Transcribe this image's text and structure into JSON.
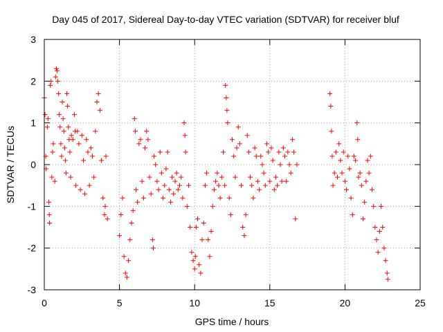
{
  "chart_data": {
    "type": "scatter",
    "title": "Day 045 of 2017, Sidereal Day-to-day VTEC variation (SDTVAR) for receiver bluf",
    "xlabel": "GPS time / hours",
    "ylabel": "SDTVAR / TECUs",
    "xlim": [
      0,
      25
    ],
    "ylim": [
      -3,
      3
    ],
    "xticks": [
      0,
      5,
      10,
      15,
      20,
      25
    ],
    "yticks": [
      -3,
      -2,
      -1,
      0,
      1,
      2,
      3
    ],
    "grid": true,
    "marker": "+",
    "marker_color": "#ff0000",
    "series": [
      {
        "name": "SDTVAR",
        "points": [
          [
            0.0,
            1.6
          ],
          [
            0.05,
            1.2
          ],
          [
            0.1,
            0.2
          ],
          [
            0.12,
            -0.1
          ],
          [
            0.2,
            0.9
          ],
          [
            0.25,
            1.1
          ],
          [
            0.3,
            -0.9
          ],
          [
            0.33,
            -1.2
          ],
          [
            0.35,
            -1.4
          ],
          [
            0.4,
            1.9
          ],
          [
            0.45,
            2.0
          ],
          [
            0.5,
            -0.3
          ],
          [
            0.55,
            0.3
          ],
          [
            0.6,
            0.5
          ],
          [
            0.7,
            -0.4
          ],
          [
            0.75,
            2.1
          ],
          [
            0.8,
            2.3
          ],
          [
            0.85,
            2.25
          ],
          [
            0.9,
            2.0
          ],
          [
            0.95,
            1.7
          ],
          [
            1.0,
            1.2
          ],
          [
            1.05,
            0.9
          ],
          [
            1.1,
            0.5
          ],
          [
            1.15,
            0.2
          ],
          [
            1.2,
            1.5
          ],
          [
            1.25,
            1.1
          ],
          [
            1.3,
            0.8
          ],
          [
            1.35,
            0.4
          ],
          [
            1.4,
            0.1
          ],
          [
            1.45,
            -0.2
          ],
          [
            1.5,
            1.7
          ],
          [
            1.55,
            1.4
          ],
          [
            1.6,
            0.9
          ],
          [
            1.65,
            0.6
          ],
          [
            1.7,
            0.3
          ],
          [
            1.75,
            -0.3
          ],
          [
            1.8,
            0.7
          ],
          [
            1.9,
            0.6
          ],
          [
            2.0,
            1.2
          ],
          [
            2.05,
            0.8
          ],
          [
            2.1,
            -0.5
          ],
          [
            2.2,
            0.8
          ],
          [
            2.3,
            0.5
          ],
          [
            2.4,
            -0.6
          ],
          [
            2.5,
            0.7
          ],
          [
            2.6,
            0.1
          ],
          [
            2.7,
            -0.7
          ],
          [
            2.8,
            0.6
          ],
          [
            2.9,
            0.3
          ],
          [
            3.0,
            -0.5
          ],
          [
            3.1,
            0.4
          ],
          [
            3.2,
            0.2
          ],
          [
            3.3,
            -0.3
          ],
          [
            3.4,
            0.8
          ],
          [
            3.5,
            1.5
          ],
          [
            3.6,
            1.7
          ],
          [
            3.7,
            1.3
          ],
          [
            3.8,
            0.1
          ],
          [
            3.9,
            -0.8
          ],
          [
            4.0,
            -1.2
          ],
          [
            4.05,
            -1.0
          ],
          [
            4.1,
            0.2
          ],
          [
            4.2,
            -1.3
          ],
          [
            5.0,
            -1.7
          ],
          [
            5.1,
            -1.2
          ],
          [
            5.2,
            -0.8
          ],
          [
            5.3,
            -2.2
          ],
          [
            5.4,
            -2.6
          ],
          [
            5.5,
            -2.7
          ],
          [
            5.6,
            -2.3
          ],
          [
            5.7,
            -1.8
          ],
          [
            5.8,
            -1.4
          ],
          [
            5.9,
            -1.1
          ],
          [
            6.0,
            1.1
          ],
          [
            6.05,
            0.8
          ],
          [
            6.1,
            -0.6
          ],
          [
            6.2,
            -0.9
          ],
          [
            6.3,
            0.5
          ],
          [
            6.4,
            0.6
          ],
          [
            6.5,
            -0.4
          ],
          [
            6.6,
            -0.8
          ],
          [
            6.7,
            0.4
          ],
          [
            6.8,
            0.8
          ],
          [
            6.9,
            0.6
          ],
          [
            7.0,
            -0.3
          ],
          [
            7.1,
            -0.7
          ],
          [
            7.2,
            -1.8
          ],
          [
            7.25,
            -2.0
          ],
          [
            7.3,
            0.2
          ],
          [
            7.4,
            0.0
          ],
          [
            7.5,
            -0.4
          ],
          [
            7.6,
            -0.6
          ],
          [
            7.7,
            0.3
          ],
          [
            7.8,
            -0.2
          ],
          [
            7.9,
            -0.8
          ],
          [
            8.0,
            -0.5
          ],
          [
            8.1,
            -0.1
          ],
          [
            8.2,
            0.3
          ],
          [
            8.3,
            -0.6
          ],
          [
            8.4,
            -0.9
          ],
          [
            8.5,
            -0.3
          ],
          [
            8.6,
            -0.7
          ],
          [
            8.7,
            -0.4
          ],
          [
            8.8,
            -0.2
          ],
          [
            8.9,
            -0.6
          ],
          [
            9.0,
            -0.5
          ],
          [
            9.1,
            -0.3
          ],
          [
            9.2,
            -0.8
          ],
          [
            9.3,
            1.0
          ],
          [
            9.35,
            0.7
          ],
          [
            9.4,
            0.3
          ],
          [
            9.5,
            -1.0
          ],
          [
            9.6,
            -0.5
          ],
          [
            9.7,
            -1.5
          ],
          [
            9.8,
            -2.1
          ],
          [
            9.9,
            -2.3
          ],
          [
            10.0,
            -2.5
          ],
          [
            10.05,
            -2.2
          ],
          [
            10.1,
            -1.5
          ],
          [
            10.2,
            -1.3
          ],
          [
            10.3,
            -2.4
          ],
          [
            10.4,
            -2.6
          ],
          [
            10.5,
            -1.8
          ],
          [
            10.6,
            -1.4
          ],
          [
            10.7,
            -0.5
          ],
          [
            10.8,
            -0.2
          ],
          [
            10.9,
            -1.8
          ],
          [
            11.0,
            -2.2
          ],
          [
            11.1,
            -1.6
          ],
          [
            11.2,
            -1.0
          ],
          [
            11.3,
            -0.6
          ],
          [
            11.4,
            -0.4
          ],
          [
            11.5,
            -0.2
          ],
          [
            11.6,
            -0.5
          ],
          [
            11.7,
            -0.8
          ],
          [
            11.8,
            -0.3
          ],
          [
            11.9,
            0.3
          ],
          [
            12.0,
            -0.5
          ],
          [
            12.05,
            1.9
          ],
          [
            12.1,
            1.6
          ],
          [
            12.15,
            1.3
          ],
          [
            12.2,
            1.0
          ],
          [
            12.3,
            -0.8
          ],
          [
            12.4,
            -1.2
          ],
          [
            12.5,
            0.6
          ],
          [
            12.6,
            0.2
          ],
          [
            12.7,
            -0.3
          ],
          [
            12.8,
            0.4
          ],
          [
            12.9,
            0.9
          ],
          [
            13.0,
            0.5
          ],
          [
            13.1,
            -0.5
          ],
          [
            13.2,
            -1.5
          ],
          [
            13.3,
            -1.7
          ],
          [
            13.4,
            -1.2
          ],
          [
            13.5,
            0.7
          ],
          [
            13.6,
            0.3
          ],
          [
            13.7,
            -0.3
          ],
          [
            13.8,
            -0.5
          ],
          [
            13.9,
            -0.8
          ],
          [
            14.0,
            0.4
          ],
          [
            14.1,
            0.2
          ],
          [
            14.2,
            -0.4
          ],
          [
            14.3,
            -0.6
          ],
          [
            14.4,
            0.2
          ],
          [
            14.5,
            0.0
          ],
          [
            14.6,
            -0.2
          ],
          [
            14.7,
            -0.5
          ],
          [
            14.8,
            0.5
          ],
          [
            14.9,
            0.3
          ],
          [
            15.0,
            -0.4
          ],
          [
            15.1,
            0.4
          ],
          [
            15.2,
            0.1
          ],
          [
            15.3,
            -0.6
          ],
          [
            15.4,
            -0.3
          ],
          [
            15.5,
            -0.5
          ],
          [
            15.6,
            0.3
          ],
          [
            15.7,
            0.0
          ],
          [
            15.8,
            -0.4
          ],
          [
            15.9,
            0.4
          ],
          [
            16.0,
            0.2
          ],
          [
            16.1,
            -0.4
          ],
          [
            16.2,
            0.3
          ],
          [
            16.3,
            0.0
          ],
          [
            16.4,
            -0.2
          ],
          [
            16.5,
            0.6
          ],
          [
            16.6,
            0.3
          ],
          [
            16.7,
            -1.3
          ],
          [
            16.8,
            0.0
          ],
          [
            19.0,
            1.7
          ],
          [
            19.05,
            1.4
          ],
          [
            19.1,
            0.8
          ],
          [
            19.15,
            0.2
          ],
          [
            19.2,
            -0.5
          ],
          [
            19.3,
            -0.2
          ],
          [
            19.4,
            0.3
          ],
          [
            19.5,
            -0.3
          ],
          [
            19.6,
            0.5
          ],
          [
            19.7,
            0.1
          ],
          [
            19.8,
            -0.2
          ],
          [
            19.9,
            0.3
          ],
          [
            20.0,
            -0.4
          ],
          [
            20.1,
            -0.6
          ],
          [
            20.2,
            0.2
          ],
          [
            20.3,
            -0.1
          ],
          [
            20.4,
            -0.8
          ],
          [
            20.5,
            -1.2
          ],
          [
            20.6,
            0.2
          ],
          [
            20.7,
            0.1
          ],
          [
            20.8,
            1.0
          ],
          [
            20.85,
            0.6
          ],
          [
            20.9,
            -0.3
          ],
          [
            21.0,
            -0.2
          ],
          [
            21.1,
            -0.5
          ],
          [
            21.2,
            -1.3
          ],
          [
            21.3,
            -0.9
          ],
          [
            21.4,
            -0.4
          ],
          [
            21.5,
            0.1
          ],
          [
            21.6,
            -0.2
          ],
          [
            21.7,
            0.2
          ],
          [
            21.8,
            -0.6
          ],
          [
            21.9,
            -1.0
          ],
          [
            22.0,
            -1.5
          ],
          [
            22.1,
            -1.8
          ],
          [
            22.2,
            -2.1
          ],
          [
            22.3,
            -1.6
          ],
          [
            22.4,
            -1.0
          ],
          [
            22.5,
            -1.5
          ],
          [
            22.6,
            -2.0
          ],
          [
            22.7,
            -2.3
          ],
          [
            22.8,
            -2.6
          ],
          [
            22.85,
            -2.75
          ]
        ]
      }
    ]
  }
}
